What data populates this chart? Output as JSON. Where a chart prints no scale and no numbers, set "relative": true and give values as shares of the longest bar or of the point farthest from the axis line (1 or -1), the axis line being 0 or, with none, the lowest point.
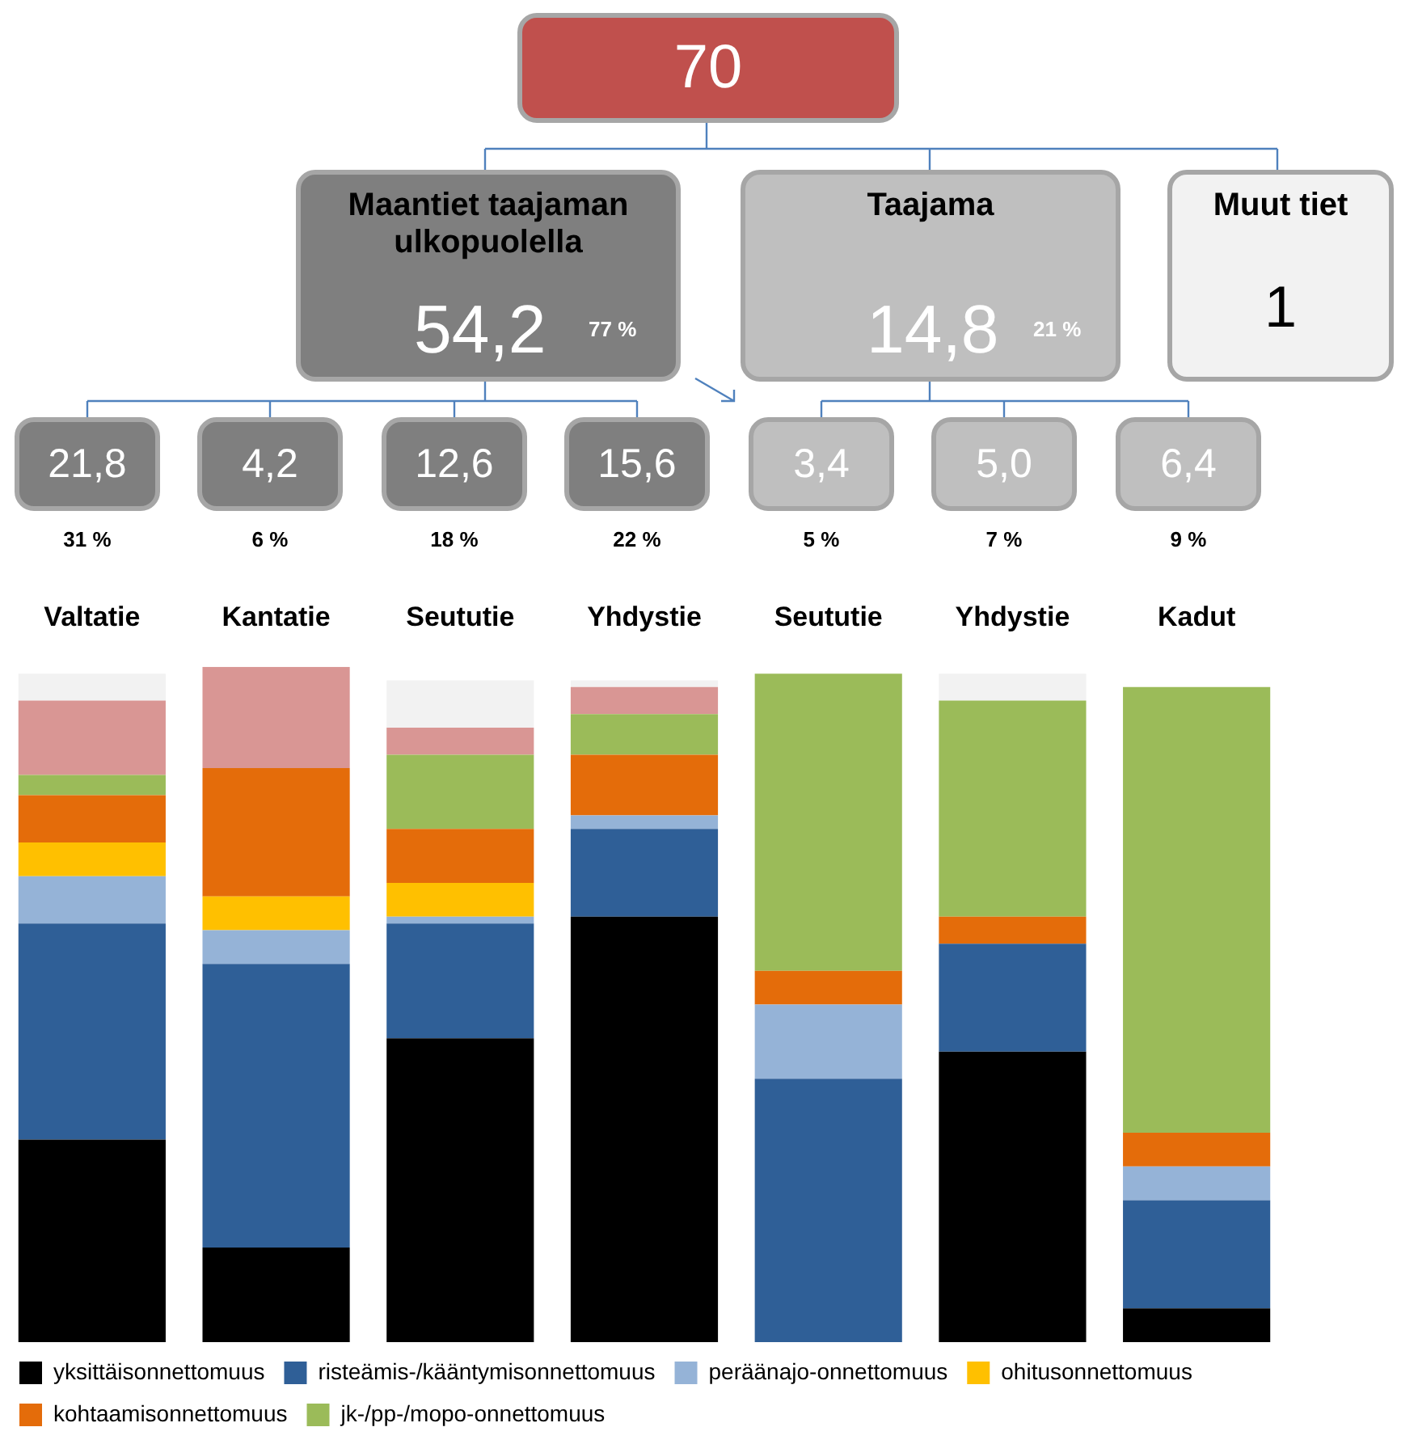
{
  "chart_data": {
    "type": "bar",
    "stacked": true,
    "relative": true,
    "legend": "bottom",
    "grid": false,
    "categories": [
      "Valtatie",
      "Kantatie",
      "Seututie",
      "Yhdystie",
      "Seututie",
      "Yhdystie",
      "Kadut"
    ],
    "series": [
      {
        "name": "yksittäisonnettomuus",
        "color": "#000000",
        "values": [
          0.3,
          0.14,
          0.45,
          0.63,
          0,
          0.43,
          0.05
        ]
      },
      {
        "name": "risteämis-/kääntymisonnettomuus",
        "color": "#2f5f97",
        "values": [
          0.32,
          0.42,
          0.17,
          0.13,
          0.39,
          0.16,
          0.16
        ]
      },
      {
        "name": "peräänajo-onnettomuus",
        "color": "#95b3d7",
        "values": [
          0.07,
          0.05,
          0.01,
          0.02,
          0.11,
          0,
          0.05
        ]
      },
      {
        "name": "ohitusonnettomuus",
        "color": "#ffc000",
        "values": [
          0.05,
          0.05,
          0.05,
          0,
          0,
          0,
          0
        ]
      },
      {
        "name": "kohtaamisonnettomuus",
        "color": "#e46c0a",
        "values": [
          0.07,
          0.19,
          0.08,
          0.09,
          0.05,
          0.04,
          0.05
        ]
      },
      {
        "name": "jk-/pp-/mopo-onnettomuus",
        "color": "#9bbb59",
        "values": [
          0.03,
          0,
          0.11,
          0.06,
          0.44,
          0.32,
          0.66
        ]
      },
      {
        "color": "#d99694",
        "values": [
          0.11,
          0.15,
          0.04,
          0.04,
          0,
          0,
          0
        ]
      },
      {
        "color": "#f2f2f2",
        "values": [
          0.04,
          0,
          0.07,
          0.01,
          0,
          0.04,
          0
        ]
      }
    ],
    "annotations": [
      "70",
      "Maantiet taajaman ulkopuolella",
      "54,2",
      "77 %",
      "Taajama",
      "14,8",
      "21 %",
      "Muut tiet",
      "1",
      "21,8",
      "31 %",
      "4,2",
      "6 %",
      "12,6",
      "18 %",
      "15,6",
      "22 %",
      "3,4",
      "5 %",
      "5,0",
      "7 %",
      "6,4",
      "9 %"
    ]
  }
}
